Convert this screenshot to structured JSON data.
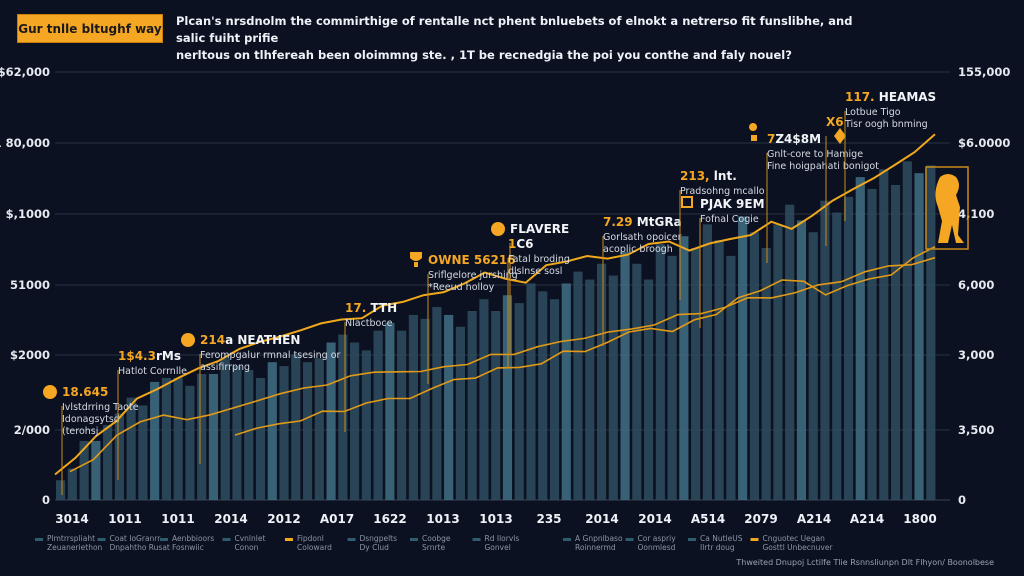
{
  "header": {
    "badge": "Gur tnlle bltughf way",
    "headline_line1": "Plcan's nrsdnolm the commirthige of rentalle nct phent bnluebets of elnokt a netrerso fit funslibhe, and salic fuiht prifie",
    "headline_line2": "nerltous on tlhfereah been oloimmng ste. , 1T be recnedgia the poi you conthe and faly nouel?"
  },
  "colors": {
    "background": "#0b1120",
    "accent": "#f5a623",
    "line_primary": "#f0a81c",
    "line_secondary": "#e09a18",
    "bar": "#2c4a5c",
    "bar_highlight": "#3d6a80",
    "grid": "#2a3344"
  },
  "chart_data": {
    "type": "bar",
    "title": "Gur tnlle bltughf way",
    "xlabel": "",
    "ylabel": "",
    "grid": true,
    "left_axis": {
      "ticks": [
        "$62,000",
        "1 80,000",
        "$,1000",
        "51000",
        "$2000",
        "2/000",
        "0"
      ]
    },
    "right_axis": {
      "ticks": [
        "155,000",
        "$6.0000",
        "4,100",
        "6,000",
        "3,000",
        "3,500",
        "0"
      ]
    },
    "x_tick_labels": [
      "3014",
      "1011",
      "1011",
      "2014",
      "2012",
      "A017",
      "1622",
      "1013",
      "1013",
      "235",
      "2014",
      "2014",
      "A514",
      "2079",
      "A214",
      "A214",
      "1800"
    ],
    "bars": {
      "name": "bars",
      "values_fraction_of_axis": [
        0.05,
        0.08,
        0.15,
        0.15,
        0.19,
        0.22,
        0.26,
        0.24,
        0.3,
        0.31,
        0.31,
        0.29,
        0.32,
        0.32,
        0.36,
        0.34,
        0.33,
        0.31,
        0.35,
        0.34,
        0.37,
        0.35,
        0.36,
        0.4,
        0.42,
        0.4,
        0.38,
        0.43,
        0.45,
        0.43,
        0.47,
        0.46,
        0.49,
        0.47,
        0.44,
        0.48,
        0.51,
        0.48,
        0.52,
        0.5,
        0.55,
        0.53,
        0.51,
        0.55,
        0.58,
        0.56,
        0.6,
        0.57,
        0.63,
        0.6,
        0.56,
        0.65,
        0.62,
        0.67,
        0.64,
        0.7,
        0.66,
        0.62,
        0.72,
        0.68,
        0.64,
        0.7,
        0.75,
        0.71,
        0.68,
        0.76,
        0.73,
        0.77,
        0.82,
        0.79,
        0.84,
        0.8,
        0.86,
        0.83,
        0.85
      ]
    },
    "series": [
      {
        "name": "upper line",
        "values_fraction_of_axis": [
          0.07,
          0.12,
          0.17,
          0.22,
          0.28,
          0.3,
          0.34,
          0.36,
          0.38,
          0.42,
          0.43,
          0.45,
          0.47,
          0.48,
          0.5,
          0.5,
          0.53,
          0.55,
          0.56,
          0.57,
          0.6,
          0.62,
          0.61,
          0.6,
          0.64,
          0.66,
          0.67,
          0.66,
          0.68,
          0.7,
          0.71,
          0.69,
          0.7,
          0.72,
          0.73,
          0.76,
          0.75,
          0.78,
          0.82,
          0.86,
          0.88,
          0.92,
          0.96,
          1.0
        ]
      },
      {
        "name": "middle line",
        "values_fraction_of_axis": [
          0.09,
          0.12,
          0.19,
          0.24,
          0.25,
          0.24,
          0.26,
          0.27,
          0.3,
          0.32,
          0.33,
          0.35,
          0.37,
          0.38,
          0.39,
          0.38,
          0.4,
          0.41,
          0.43,
          0.44,
          0.46,
          0.47,
          0.49,
          0.5,
          0.51,
          0.53,
          0.55,
          0.56,
          0.58,
          0.6,
          0.61,
          0.62,
          0.64,
          0.66,
          0.68,
          0.7,
          0.71,
          0.72
        ]
      },
      {
        "name": "lower line",
        "values_fraction_of_axis": [
          0.2,
          0.21,
          0.23,
          0.24,
          0.26,
          0.27,
          0.29,
          0.3,
          0.31,
          0.33,
          0.36,
          0.37,
          0.39,
          0.4,
          0.41,
          0.44,
          0.45,
          0.47,
          0.5,
          0.52,
          0.5,
          0.54,
          0.56,
          0.6,
          0.63,
          0.66,
          0.65,
          0.62,
          0.64,
          0.66,
          0.68,
          0.72,
          0.76
        ]
      }
    ],
    "annotations": [
      {
        "title": "18.645",
        "sub": [
          "Ivlstdrring Taote",
          "Idonagsytsd",
          "(terohsj"
        ],
        "icon": "coin-icon"
      },
      {
        "title": "1$4.3rMs",
        "sub": [
          "Hatlot Corrnlle"
        ],
        "icon": "none"
      },
      {
        "title": "214a NEATHEN",
        "sub": [
          "Ferompgalur rmnal tsesing or",
          "assifirrpng"
        ],
        "icon": "coin-icon"
      },
      {
        "title": "17. TTH",
        "sub": [
          "Nlactboce"
        ],
        "icon": "none"
      },
      {
        "title": "OWNE 56216",
        "sub": [
          "Sriflgelore jurshing",
          "*Reeud holloy"
        ],
        "icon": "trophy-icon"
      },
      {
        "title": "FLAVERE",
        "sub": [],
        "icon": "coin-icon"
      },
      {
        "title": "1C6",
        "sub": [
          "Fatal broding",
          "dlslnse sosl"
        ],
        "icon": "none"
      },
      {
        "title": "7.29 MtGRa",
        "sub": [
          "Gorlsath opoicer",
          "acoplic broogh"
        ],
        "icon": "none"
      },
      {
        "title": "213, lnt.",
        "sub": [
          "Pradsohng mcallo"
        ],
        "icon": "none"
      },
      {
        "title": "PJAK 9EM",
        "sub": [
          "Fofnal Cogie"
        ],
        "icon": "square-icon"
      },
      {
        "title": "7Z4$8M",
        "sub": [
          "Gnlt-core to Hamige",
          "Fine hoigpahati bonigot"
        ],
        "icon": "keyhole-icon"
      },
      {
        "title": "X6",
        "sub": [],
        "icon": "diamond-icon"
      },
      {
        "title": "117. HEAMAS",
        "sub": [
          "Lotbue Tigo",
          "Tisr oogh bnming"
        ],
        "icon": "none"
      }
    ],
    "legend": [
      {
        "line1": "Plmtrrspliaht",
        "line2": "Zeuaneriethon",
        "swatch": "#2f5c6e"
      },
      {
        "line1": "Coat IoGranrr",
        "line2": "Dnpahtho Rusat",
        "swatch": "#2f5c6e"
      },
      {
        "line1": "Aenbbioors",
        "line2": "Fosnwiic",
        "swatch": "#2f5c6e"
      },
      {
        "line1": "Cvnlnlet",
        "line2": "Conon",
        "swatch": "#2f5c6e"
      },
      {
        "line1": "Fipdonl",
        "line2": "Coloward",
        "swatch": "#f0a81c"
      },
      {
        "line1": "Dsngpelts",
        "line2": "Dy Clud",
        "swatch": "#2f5c6e"
      },
      {
        "line1": "Coobge",
        "line2": "Srnrte",
        "swatch": "#2f5c6e"
      },
      {
        "line1": "Rd Ilorvls",
        "line2": "Gonvel",
        "swatch": "#2f5c6e"
      },
      {
        "line1": "A Gnpnlbaso",
        "line2": "Roinnermd",
        "swatch": "#2f5c6e"
      },
      {
        "line1": "Cor aspriy",
        "line2": "Oonmlesd",
        "swatch": "#2f5c6e"
      },
      {
        "line1": "Ca NutleUS",
        "line2": "Ilrtr doug",
        "swatch": "#2f5c6e"
      },
      {
        "line1": "Cnguotec Uegan",
        "line2": "Gosttl Unbecnuver",
        "swatch": "#f0a81c"
      }
    ],
    "source": "Thweited Dnupoj Lctilfe Tlie Rsnnsliunpn Dlt Flhyon/ Boonolbese"
  }
}
